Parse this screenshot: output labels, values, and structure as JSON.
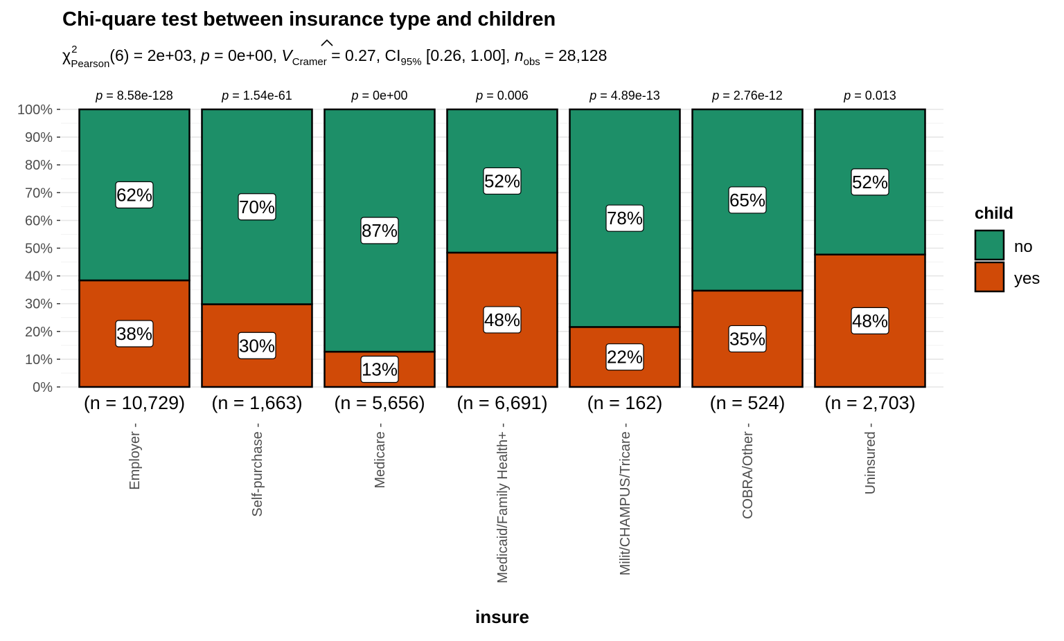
{
  "chart_data": {
    "type": "bar",
    "stacked": true,
    "normalized": true,
    "title": "Chi-quare test between insurance type and children",
    "subtitle": {
      "chi": "χ",
      "chi_sup": "2",
      "chi_sub": "Pearson",
      "part1": "(6) = 2e+03, ",
      "p_sym": "p",
      "part2": " = 0e+00, ",
      "v_sym": "V",
      "v_sub": "Cramer",
      "part3": " = 0.27, CI",
      "ci_sub": "95%",
      "part4": " [0.26, 1.00], ",
      "n_sym": "n",
      "n_sub": "obs",
      "part5": " = 28,128"
    },
    "xlabel": "insure",
    "ylabel": "",
    "ylim": [
      0,
      100
    ],
    "y_ticks": [
      "0%",
      "10%",
      "20%",
      "30%",
      "40%",
      "50%",
      "60%",
      "70%",
      "80%",
      "90%",
      "100%"
    ],
    "categories": [
      "Employer",
      "Self-purchase",
      "Medicare",
      "Medicaid/Family Health+",
      "Milit/CHAMPUS/Tricare",
      "COBRA/Other",
      "Uninsured"
    ],
    "counts": [
      "(n = 10,729)",
      "(n = 1,663)",
      "(n = 5,656)",
      "(n = 6,691)",
      "(n = 162)",
      "(n = 524)",
      "(n = 2,703)"
    ],
    "p_labels": [
      "8.58e-128",
      "1.54e-61",
      "0e+00",
      "0.006",
      "4.89e-13",
      "2.76e-12",
      "0.013"
    ],
    "p_prefix": "p",
    "p_eq": " = ",
    "series": [
      {
        "name": "yes",
        "color": "#D04A07",
        "values": [
          38.4,
          29.8,
          12.7,
          48.4,
          21.6,
          34.7,
          47.7
        ],
        "labels": [
          "38%",
          "30%",
          "13%",
          "48%",
          "22%",
          "35%",
          "48%"
        ]
      },
      {
        "name": "no",
        "color": "#1D8F68",
        "values": [
          61.6,
          70.2,
          87.3,
          51.6,
          78.4,
          65.3,
          52.3
        ],
        "labels": [
          "62%",
          "70%",
          "87%",
          "52%",
          "78%",
          "65%",
          "52%"
        ]
      }
    ],
    "legend": {
      "title": "child",
      "placement": "right",
      "entries": [
        "no",
        "yes"
      ]
    },
    "grid": true
  }
}
